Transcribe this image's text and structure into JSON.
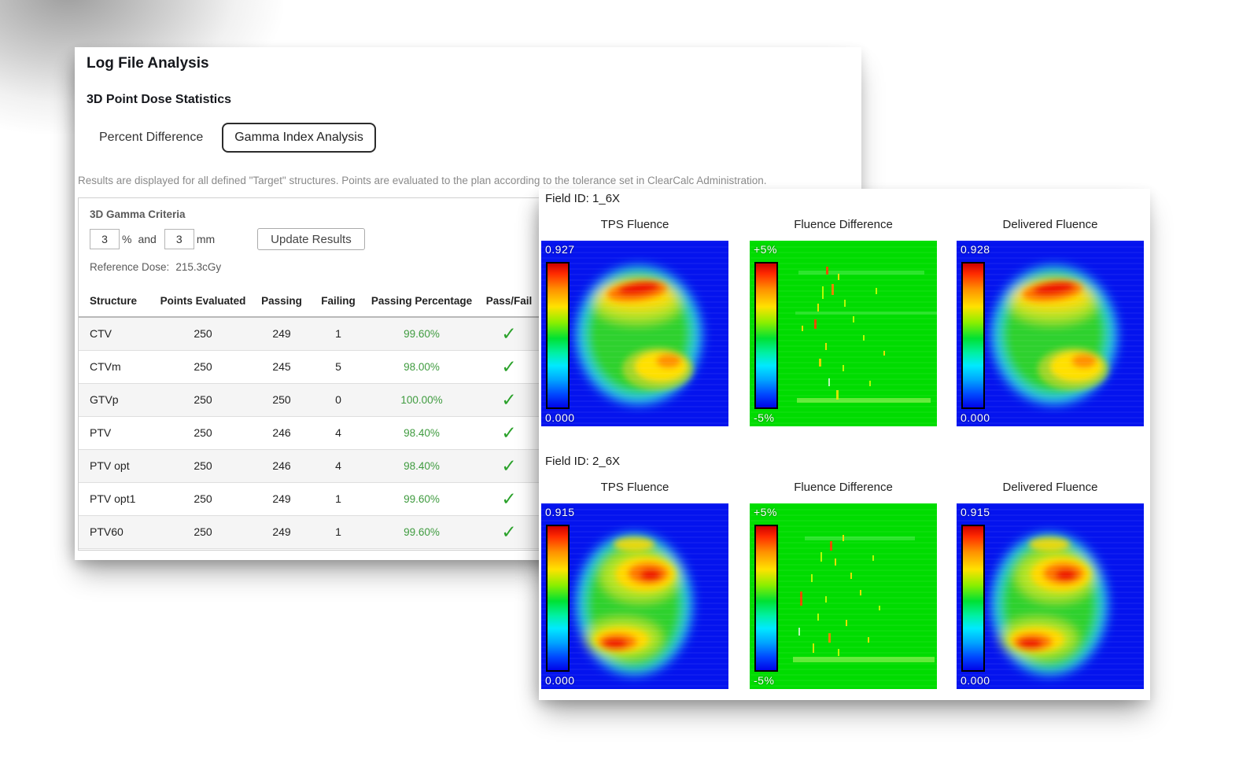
{
  "page": {
    "title": "Log File Analysis",
    "subtitle": "3D Point Dose Statistics",
    "tabs": [
      {
        "label": "Percent Difference",
        "selected": false
      },
      {
        "label": "Gamma Index Analysis",
        "selected": true
      }
    ],
    "description": "Results are displayed for all defined \"Target\" structures. Points are evaluated to the plan according to the tolerance set in ClearCalc Administration."
  },
  "criteria": {
    "box_title": "3D Gamma Criteria",
    "percent_value": "3",
    "percent_unit": "%",
    "and_label": "and",
    "mm_value": "3",
    "mm_unit": "mm",
    "update_button": "Update Results",
    "reference_dose_label": "Reference Dose:",
    "reference_dose_value": "215.3cGy"
  },
  "results_table": {
    "columns": [
      "Structure",
      "Points Evaluated",
      "Passing",
      "Failing",
      "Passing Percentage",
      "Pass/Fail"
    ],
    "pass_icon": "✓",
    "colors": {
      "pass_green": "#2aa12a",
      "percent_green": "#3f9b3f"
    },
    "rows": [
      {
        "structure": "CTV",
        "points": "250",
        "passing": "249",
        "failing": "1",
        "percentage": "99.60%",
        "pass": true
      },
      {
        "structure": "CTVm",
        "points": "250",
        "passing": "245",
        "failing": "5",
        "percentage": "98.00%",
        "pass": true
      },
      {
        "structure": "GTVp",
        "points": "250",
        "passing": "250",
        "failing": "0",
        "percentage": "100.00%",
        "pass": true
      },
      {
        "structure": "PTV",
        "points": "250",
        "passing": "246",
        "failing": "4",
        "percentage": "98.40%",
        "pass": true
      },
      {
        "structure": "PTV opt",
        "points": "250",
        "passing": "246",
        "failing": "4",
        "percentage": "98.40%",
        "pass": true
      },
      {
        "structure": "PTV opt1",
        "points": "250",
        "passing": "249",
        "failing": "1",
        "percentage": "99.60%",
        "pass": true
      },
      {
        "structure": "PTV60",
        "points": "250",
        "passing": "249",
        "failing": "1",
        "percentage": "99.60%",
        "pass": true
      }
    ]
  },
  "fluence_panel": {
    "fields": [
      {
        "field_label": "Field ID: 1_6X",
        "maps": [
          {
            "title": "TPS Fluence",
            "type": "fluence",
            "max_label": "0.927",
            "min_label": "0.000"
          },
          {
            "title": "Fluence Difference",
            "type": "difference",
            "max_label": "+5%",
            "min_label": "-5%"
          },
          {
            "title": "Delivered Fluence",
            "type": "fluence",
            "max_label": "0.928",
            "min_label": "0.000"
          }
        ]
      },
      {
        "field_label": "Field ID: 2_6X",
        "maps": [
          {
            "title": "TPS Fluence",
            "type": "fluence",
            "max_label": "0.915",
            "min_label": "0.000"
          },
          {
            "title": "Fluence Difference",
            "type": "difference",
            "max_label": "+5%",
            "min_label": "-5%"
          },
          {
            "title": "Delivered Fluence",
            "type": "fluence",
            "max_label": "0.915",
            "min_label": "0.000"
          }
        ]
      }
    ]
  }
}
